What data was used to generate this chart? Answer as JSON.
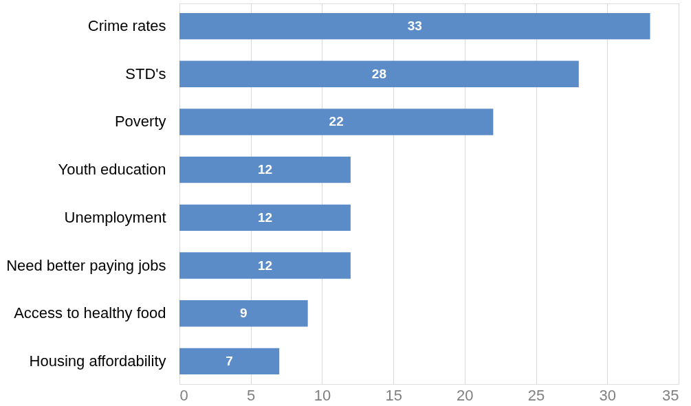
{
  "chart_data": {
    "type": "bar",
    "orientation": "horizontal",
    "categories": [
      "Crime rates",
      "STD's",
      "Poverty",
      "Youth education",
      "Unemployment",
      "Need better paying jobs",
      "Access to healthy food",
      "Housing affordability"
    ],
    "values": [
      33,
      28,
      22,
      12,
      12,
      12,
      9,
      7
    ],
    "color": "#5b8cc8",
    "xlim": [
      0,
      35
    ],
    "xticks": [
      0,
      5,
      10,
      15,
      20,
      25,
      30,
      35
    ],
    "grid": "x",
    "data_labels": true
  }
}
